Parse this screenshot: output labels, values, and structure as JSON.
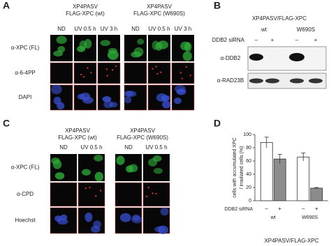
{
  "panel_a": {
    "label": "A",
    "groups": [
      {
        "line1": "XP4PASV",
        "line2": "FLAG-XPC (wt)",
        "columns": [
          "ND",
          "UV 0.5 h",
          "UV 3 h"
        ]
      },
      {
        "line1": "XP4PASV",
        "line2": "FLAG-XPC (W690S)",
        "columns": [
          "ND",
          "UV 0.5 h",
          "UV 3 h"
        ]
      }
    ],
    "rows": [
      "α-XPC (FL)",
      "α-6-4PP",
      "DAPI"
    ]
  },
  "panel_b": {
    "label": "B",
    "title": "XP4PASV/FLAG-XPC",
    "groups": [
      "wt",
      "W690S"
    ],
    "sirna_label": "DDB2 siRNA",
    "sirna": [
      "–",
      "+",
      "–",
      "+"
    ],
    "rows": [
      "α-DDB2",
      "α-RAD23B"
    ]
  },
  "panel_c": {
    "label": "C",
    "groups": [
      {
        "line1": "XP4PASV",
        "line2": "FLAG-XPC (wt)",
        "columns": [
          "ND",
          "UV 0.5 h"
        ]
      },
      {
        "line1": "XP4PASV",
        "line2": "FLAG-XPC (W690S)",
        "columns": [
          "ND",
          "UV 0.5 h"
        ]
      }
    ],
    "rows": [
      "α-XPC (FL)",
      "α-CPD",
      "Hoechst"
    ]
  },
  "chart_data": {
    "type": "bar",
    "label": "D",
    "ylabel_lines": [
      "cells with accumulated XPC",
      "/ irradiated cells (%)"
    ],
    "categories": [
      "wt",
      "W690S"
    ],
    "row_label": "DDB2 siRNA",
    "xlabel": "XP4PASV/FLAG-XPC",
    "series": [
      {
        "name": "–",
        "color": "#ffffff",
        "values": [
          88,
          66
        ],
        "errors": [
          8,
          6
        ]
      },
      {
        "name": "+",
        "color": "#8c8c8c",
        "values": [
          63,
          19
        ],
        "errors": [
          7,
          1
        ]
      }
    ],
    "ylim": [
      0,
      100
    ],
    "yticks": [
      0,
      20,
      40,
      60,
      80,
      100
    ]
  }
}
